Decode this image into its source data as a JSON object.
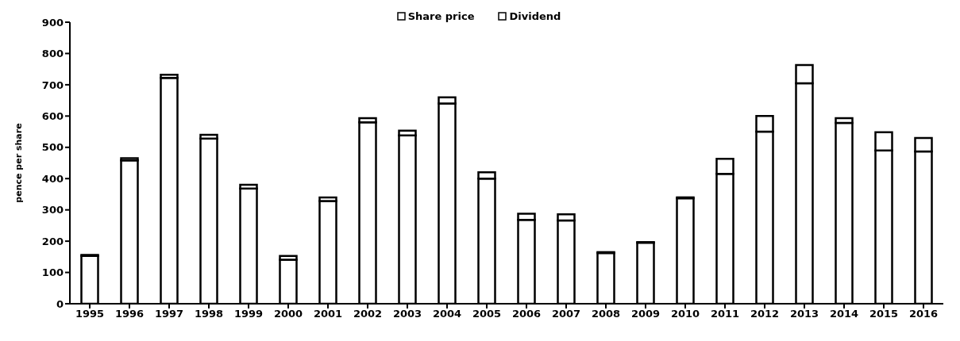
{
  "chart_data": {
    "type": "bar",
    "stacked": true,
    "ylabel": "pence per share",
    "categories": [
      "1995",
      "1996",
      "1997",
      "1998",
      "1999",
      "2000",
      "2001",
      "2002",
      "2003",
      "2004",
      "2005",
      "2006",
      "2007",
      "2008",
      "2009",
      "2010",
      "2011",
      "2012",
      "2013",
      "2014",
      "2015",
      "2016"
    ],
    "series": [
      {
        "name": "Share price",
        "color": "#ffffff",
        "values": [
          153,
          458,
          722,
          528,
          368,
          141,
          328,
          580,
          538,
          640,
          400,
          268,
          266,
          162,
          195,
          337,
          415,
          550,
          705,
          578,
          490,
          487
        ]
      },
      {
        "name": "Dividend",
        "color": "#ffffff",
        "values": [
          3,
          7,
          10,
          12,
          12,
          12,
          12,
          13,
          15,
          20,
          20,
          20,
          20,
          3,
          2,
          3,
          48,
          50,
          58,
          15,
          58,
          43
        ]
      }
    ],
    "ylim": [
      0,
      900
    ],
    "yticks": [
      0,
      100,
      200,
      300,
      400,
      500,
      600,
      700,
      800,
      900
    ],
    "legend": "top"
  }
}
